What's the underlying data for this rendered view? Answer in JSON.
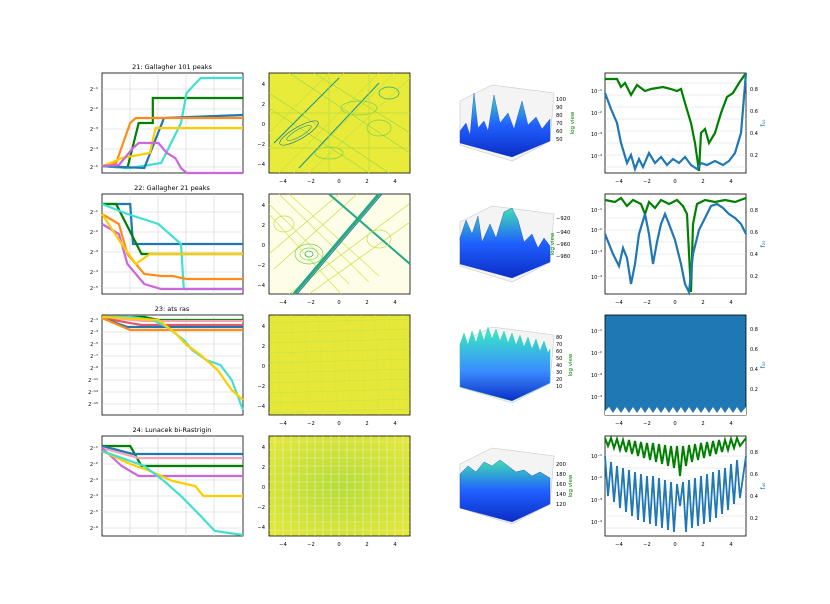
{
  "colors": {
    "green": "#008000",
    "blue": "#1f77b4",
    "dodger": "#3399ff",
    "orange": "#ff8c1a",
    "gold": "#ffcc00",
    "violet": "#cc66dd",
    "turq": "#40e0d0",
    "red": "#e8585f",
    "pink": "#f4a5b5",
    "contour_light": "#d7e84a",
    "contour_mid": "#7ad151",
    "contour_dark": "#22a884",
    "contour_deep": "#2a788e",
    "surf_top": "#40e0b0",
    "surf_low": "#0b3cff"
  },
  "rows": [
    {
      "title": "21: Gallagher 101 peaks",
      "conv_yticks": [
        "2⁻¹",
        "2⁻²",
        "2⁻³",
        "2⁻⁴",
        "2⁻⁵"
      ],
      "surf_zticks": [
        "100",
        "90",
        "80",
        "70",
        "60",
        "50"
      ],
      "surf_zlabel": "log view"
    },
    {
      "title": "22: Gallagher 21 peaks",
      "conv_yticks": [
        "2⁻¹",
        "2⁻²",
        "2⁻³",
        "2⁻⁴",
        "2⁻⁵"
      ],
      "surf_zticks": [
        "−920",
        "−940",
        "−960",
        "−980"
      ],
      "surf_zlabel": "log view"
    },
    {
      "title": "23: ats ras",
      "conv_yticks": [
        "2⁻¹",
        "2⁻³",
        "2⁻⁵",
        "2⁻⁷",
        "2⁻⁹",
        "2⁻¹¹",
        "2⁻¹³",
        "2⁻¹⁵"
      ],
      "surf_zticks": [
        "80",
        "70",
        "60",
        "50",
        "40",
        "30",
        "20",
        "10"
      ],
      "surf_zlabel": "log view"
    },
    {
      "title": "24: Lunacek bi-Rastrigin",
      "conv_yticks": [
        "2⁻¹",
        "2⁻²",
        "2⁻³",
        "2⁻⁴",
        "2⁻⁵",
        "2⁻⁶"
      ],
      "surf_zticks": [
        "200",
        "180",
        "160",
        "140",
        "120"
      ],
      "surf_zlabel": "log view"
    }
  ],
  "chart_data": [
    {
      "type": "line",
      "panel": "convergence",
      "title": "21: Gallagher 101 peaks",
      "yscale": "log2",
      "series": [
        {
          "color": "green",
          "values": [
            [
              0,
              0.93
            ],
            [
              18,
              0.95
            ],
            [
              26,
              0.5
            ],
            [
              36,
              0.5
            ],
            [
              36,
              0.25
            ],
            [
              100,
              0.25
            ]
          ]
        },
        {
          "color": "turq",
          "values": [
            [
              0,
              0.93
            ],
            [
              20,
              0.95
            ],
            [
              42,
              0.9
            ],
            [
              56,
              0.5
            ],
            [
              60,
              0.2
            ],
            [
              70,
              0.05
            ],
            [
              100,
              0.05
            ]
          ]
        },
        {
          "color": "blue",
          "values": [
            [
              0,
              0.93
            ],
            [
              30,
              0.95
            ],
            [
              44,
              0.45
            ],
            [
              100,
              0.42
            ]
          ]
        },
        {
          "color": "orange",
          "values": [
            [
              0,
              0.93
            ],
            [
              10,
              0.9
            ],
            [
              20,
              0.5
            ],
            [
              24,
              0.45
            ],
            [
              100,
              0.45
            ]
          ]
        },
        {
          "color": "gold",
          "values": [
            [
              0,
              0.93
            ],
            [
              6,
              0.9
            ],
            [
              14,
              0.85
            ],
            [
              34,
              0.8
            ],
            [
              38,
              0.55
            ],
            [
              100,
              0.55
            ]
          ]
        },
        {
          "color": "violet",
          "values": [
            [
              0,
              0.93
            ],
            [
              12,
              0.92
            ],
            [
              22,
              0.75
            ],
            [
              26,
              0.7
            ],
            [
              40,
              0.7
            ],
            [
              46,
              0.8
            ],
            [
              52,
              0.85
            ],
            [
              56,
              0.95
            ],
            [
              60,
              1.0
            ],
            [
              100,
              1.0
            ]
          ]
        }
      ]
    },
    {
      "type": "line",
      "panel": "convergence",
      "title": "22: Gallagher 21 peaks",
      "yscale": "log2",
      "series": [
        {
          "color": "blue",
          "values": [
            [
              0,
              0.1
            ],
            [
              20,
              0.1
            ],
            [
              22,
              0.5
            ],
            [
              100,
              0.5
            ]
          ]
        },
        {
          "color": "green",
          "values": [
            [
              0,
              0.1
            ],
            [
              10,
              0.1
            ],
            [
              28,
              0.6
            ],
            [
              100,
              0.6
            ]
          ]
        },
        {
          "color": "turq",
          "values": [
            [
              0,
              0.1
            ],
            [
              18,
              0.2
            ],
            [
              40,
              0.3
            ],
            [
              56,
              0.5
            ],
            [
              58,
              0.95
            ],
            [
              100,
              0.95
            ]
          ]
        },
        {
          "color": "orange",
          "values": [
            [
              0,
              0.2
            ],
            [
              12,
              0.3
            ],
            [
              18,
              0.6
            ],
            [
              30,
              0.8
            ],
            [
              42,
              0.82
            ],
            [
              50,
              0.82
            ],
            [
              60,
              0.85
            ],
            [
              100,
              0.85
            ]
          ]
        },
        {
          "color": "violet",
          "values": [
            [
              0,
              0.3
            ],
            [
              12,
              0.4
            ],
            [
              18,
              0.7
            ],
            [
              30,
              0.9
            ],
            [
              42,
              0.95
            ],
            [
              100,
              0.95
            ]
          ]
        },
        {
          "color": "gold",
          "values": [
            [
              0,
              0.2
            ],
            [
              14,
              0.5
            ],
            [
              24,
              0.7
            ],
            [
              34,
              0.6
            ],
            [
              100,
              0.6
            ]
          ]
        }
      ]
    },
    {
      "type": "line",
      "panel": "convergence",
      "title": "23: ats ras",
      "yscale": "log2",
      "series": [
        {
          "color": "green",
          "values": [
            [
              0,
              0.02
            ],
            [
              30,
              0.02
            ],
            [
              40,
              0.05
            ],
            [
              100,
              0.05
            ]
          ]
        },
        {
          "color": "pink",
          "values": [
            [
              0,
              0.02
            ],
            [
              30,
              0.06
            ],
            [
              100,
              0.06
            ]
          ]
        },
        {
          "color": "red",
          "values": [
            [
              0,
              0.03
            ],
            [
              28,
              0.1
            ],
            [
              100,
              0.1
            ]
          ]
        },
        {
          "color": "blue",
          "values": [
            [
              0,
              0.03
            ],
            [
              18,
              0.12
            ],
            [
              100,
              0.12
            ]
          ]
        },
        {
          "color": "orange",
          "values": [
            [
              0,
              0.03
            ],
            [
              20,
              0.15
            ],
            [
              100,
              0.15
            ]
          ]
        },
        {
          "color": "turq",
          "values": [
            [
              0,
              0.02
            ],
            [
              20,
              0.02
            ],
            [
              36,
              0.05
            ],
            [
              46,
              0.12
            ],
            [
              58,
              0.25
            ],
            [
              64,
              0.35
            ],
            [
              74,
              0.45
            ],
            [
              84,
              0.5
            ],
            [
              92,
              0.65
            ],
            [
              100,
              0.95
            ]
          ]
        },
        {
          "color": "gold",
          "values": [
            [
              0,
              0.02
            ],
            [
              40,
              0.05
            ],
            [
              52,
              0.18
            ],
            [
              60,
              0.3
            ],
            [
              70,
              0.4
            ],
            [
              82,
              0.55
            ],
            [
              92,
              0.75
            ],
            [
              100,
              0.85
            ]
          ]
        }
      ]
    },
    {
      "type": "line",
      "panel": "convergence",
      "title": "24: Lunacek bi-Rastrigin",
      "yscale": "log2",
      "series": [
        {
          "color": "green",
          "values": [
            [
              0,
              0.1
            ],
            [
              20,
              0.1
            ],
            [
              28,
              0.3
            ],
            [
              100,
              0.3
            ]
          ]
        },
        {
          "color": "blue",
          "values": [
            [
              0,
              0.1
            ],
            [
              22,
              0.18
            ],
            [
              100,
              0.18
            ]
          ]
        },
        {
          "color": "pink",
          "values": [
            [
              0,
              0.12
            ],
            [
              26,
              0.22
            ],
            [
              100,
              0.22
            ]
          ]
        },
        {
          "color": "violet",
          "values": [
            [
              0,
              0.12
            ],
            [
              14,
              0.3
            ],
            [
              26,
              0.4
            ],
            [
              100,
              0.4
            ]
          ]
        },
        {
          "color": "gold",
          "values": [
            [
              0,
              0.15
            ],
            [
              20,
              0.28
            ],
            [
              34,
              0.35
            ],
            [
              50,
              0.45
            ],
            [
              66,
              0.5
            ],
            [
              72,
              0.6
            ],
            [
              100,
              0.6
            ]
          ]
        },
        {
          "color": "turq",
          "values": [
            [
              0,
              0.15
            ],
            [
              30,
              0.3
            ],
            [
              44,
              0.45
            ],
            [
              56,
              0.6
            ],
            [
              70,
              0.8
            ],
            [
              80,
              0.95
            ],
            [
              100,
              0.99
            ]
          ]
        }
      ]
    }
  ]
}
